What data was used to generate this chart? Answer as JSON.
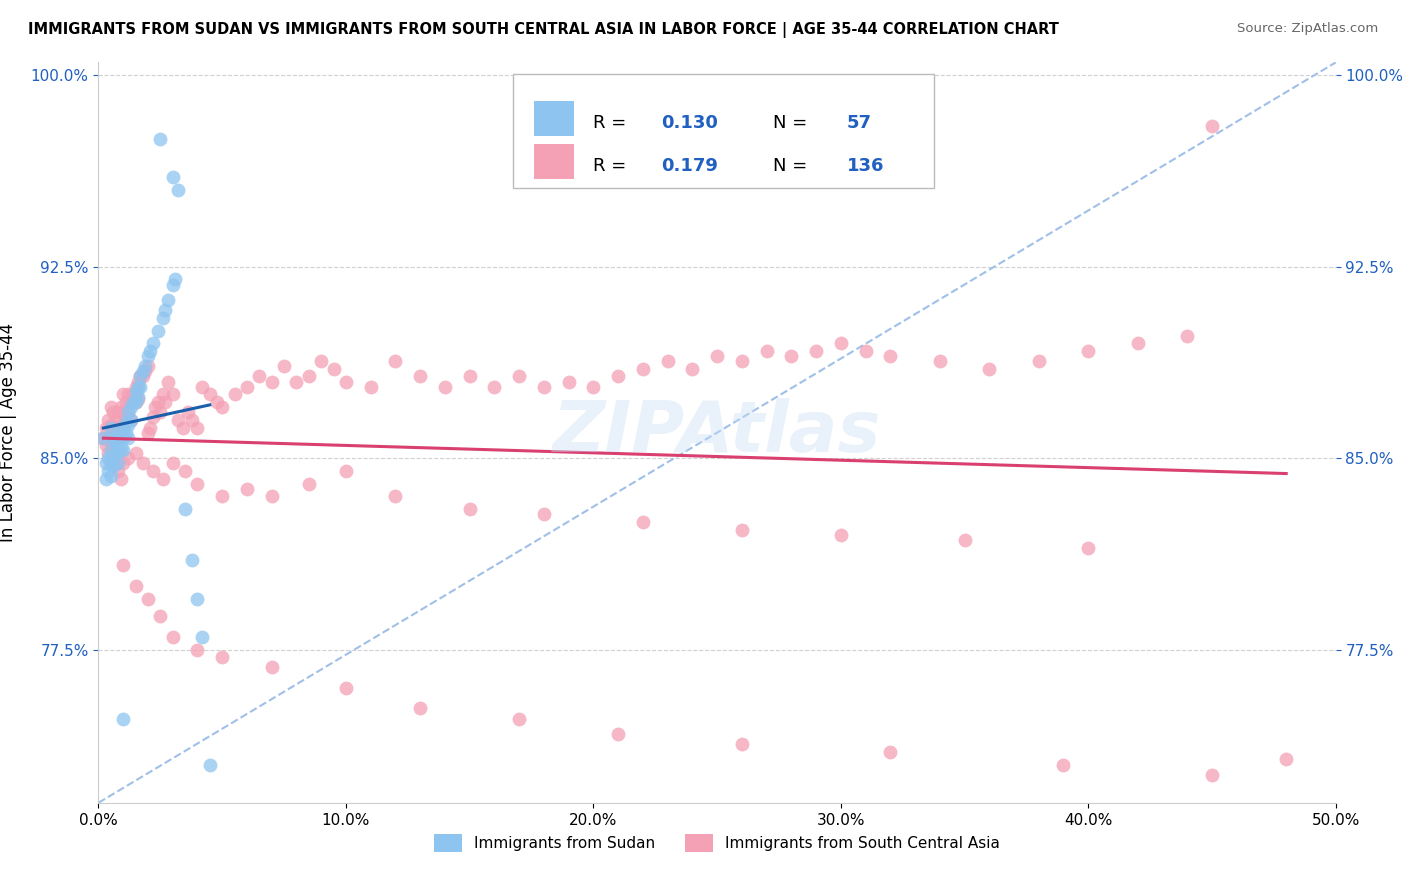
{
  "title": "IMMIGRANTS FROM SUDAN VS IMMIGRANTS FROM SOUTH CENTRAL ASIA IN LABOR FORCE | AGE 35-44 CORRELATION CHART",
  "source": "Source: ZipAtlas.com",
  "ylabel": "In Labor Force | Age 35-44",
  "watermark": "ZIPAtlas",
  "legend_R_blue": "0.130",
  "legend_N_blue": "57",
  "legend_R_pink": "0.179",
  "legend_N_pink": "136",
  "blue_color": "#8DC4F0",
  "pink_color": "#F4A0B5",
  "blue_line_color": "#1A5FAB",
  "pink_line_color": "#D94070",
  "dashed_line_color": "#A0C0E8",
  "xlim": [
    0.0,
    0.5
  ],
  "ylim": [
    0.715,
    1.005
  ],
  "y_tick_vals": [
    0.775,
    0.85,
    0.925,
    1.0
  ],
  "y_tick_labels": [
    "77.5%",
    "85.0%",
    "92.5%",
    "100.0%"
  ],
  "sudan_x": [
    0.002,
    0.003,
    0.003,
    0.004,
    0.004,
    0.005,
    0.005,
    0.005,
    0.005,
    0.005,
    0.006,
    0.006,
    0.007,
    0.007,
    0.008,
    0.008,
    0.008,
    0.008,
    0.009,
    0.009,
    0.01,
    0.01,
    0.01,
    0.011,
    0.011,
    0.012,
    0.012,
    0.012,
    0.013,
    0.013,
    0.014,
    0.015,
    0.015,
    0.016,
    0.016,
    0.017,
    0.017,
    0.018,
    0.019,
    0.02,
    0.021,
    0.022,
    0.024,
    0.025,
    0.026,
    0.027,
    0.028,
    0.03,
    0.03,
    0.031,
    0.032,
    0.035,
    0.038,
    0.04,
    0.042,
    0.045,
    0.01
  ],
  "sudan_y": [
    0.858,
    0.848,
    0.842,
    0.845,
    0.85,
    0.862,
    0.858,
    0.853,
    0.848,
    0.843,
    0.851,
    0.847,
    0.856,
    0.852,
    0.86,
    0.857,
    0.853,
    0.848,
    0.858,
    0.854,
    0.862,
    0.858,
    0.853,
    0.864,
    0.86,
    0.868,
    0.863,
    0.858,
    0.87,
    0.865,
    0.872,
    0.876,
    0.872,
    0.878,
    0.874,
    0.882,
    0.878,
    0.884,
    0.886,
    0.89,
    0.892,
    0.895,
    0.9,
    0.975,
    0.905,
    0.908,
    0.912,
    0.96,
    0.918,
    0.92,
    0.955,
    0.83,
    0.81,
    0.795,
    0.78,
    0.73,
    0.748
  ],
  "asia_x": [
    0.002,
    0.003,
    0.004,
    0.004,
    0.005,
    0.005,
    0.005,
    0.006,
    0.006,
    0.007,
    0.007,
    0.008,
    0.008,
    0.009,
    0.009,
    0.01,
    0.01,
    0.01,
    0.011,
    0.011,
    0.012,
    0.012,
    0.013,
    0.013,
    0.014,
    0.015,
    0.015,
    0.016,
    0.016,
    0.017,
    0.018,
    0.019,
    0.02,
    0.02,
    0.021,
    0.022,
    0.023,
    0.024,
    0.025,
    0.026,
    0.027,
    0.028,
    0.03,
    0.032,
    0.034,
    0.036,
    0.038,
    0.04,
    0.042,
    0.045,
    0.048,
    0.05,
    0.055,
    0.06,
    0.065,
    0.07,
    0.075,
    0.08,
    0.085,
    0.09,
    0.095,
    0.1,
    0.11,
    0.12,
    0.13,
    0.14,
    0.15,
    0.16,
    0.17,
    0.18,
    0.19,
    0.2,
    0.21,
    0.22,
    0.23,
    0.24,
    0.25,
    0.26,
    0.27,
    0.28,
    0.29,
    0.3,
    0.31,
    0.32,
    0.34,
    0.36,
    0.38,
    0.4,
    0.42,
    0.44,
    0.003,
    0.004,
    0.005,
    0.006,
    0.007,
    0.008,
    0.009,
    0.01,
    0.012,
    0.015,
    0.018,
    0.022,
    0.026,
    0.03,
    0.035,
    0.04,
    0.05,
    0.06,
    0.07,
    0.085,
    0.1,
    0.12,
    0.15,
    0.18,
    0.22,
    0.26,
    0.3,
    0.35,
    0.4,
    0.45,
    0.01,
    0.015,
    0.02,
    0.025,
    0.03,
    0.04,
    0.05,
    0.07,
    0.1,
    0.13,
    0.17,
    0.21,
    0.26,
    0.32,
    0.39,
    0.45,
    0.48
  ],
  "asia_y": [
    0.858,
    0.862,
    0.865,
    0.858,
    0.87,
    0.863,
    0.856,
    0.868,
    0.861,
    0.865,
    0.858,
    0.868,
    0.862,
    0.87,
    0.863,
    0.875,
    0.868,
    0.862,
    0.872,
    0.865,
    0.875,
    0.868,
    0.872,
    0.865,
    0.875,
    0.878,
    0.872,
    0.88,
    0.873,
    0.882,
    0.882,
    0.884,
    0.86,
    0.886,
    0.862,
    0.866,
    0.87,
    0.872,
    0.868,
    0.875,
    0.872,
    0.88,
    0.875,
    0.865,
    0.862,
    0.868,
    0.865,
    0.862,
    0.878,
    0.875,
    0.872,
    0.87,
    0.875,
    0.878,
    0.882,
    0.88,
    0.886,
    0.88,
    0.882,
    0.888,
    0.885,
    0.88,
    0.878,
    0.888,
    0.882,
    0.878,
    0.882,
    0.878,
    0.882,
    0.878,
    0.88,
    0.878,
    0.882,
    0.885,
    0.888,
    0.885,
    0.89,
    0.888,
    0.892,
    0.89,
    0.892,
    0.895,
    0.892,
    0.89,
    0.888,
    0.885,
    0.888,
    0.892,
    0.895,
    0.898,
    0.855,
    0.852,
    0.848,
    0.85,
    0.848,
    0.845,
    0.842,
    0.848,
    0.85,
    0.852,
    0.848,
    0.845,
    0.842,
    0.848,
    0.845,
    0.84,
    0.835,
    0.838,
    0.835,
    0.84,
    0.845,
    0.835,
    0.83,
    0.828,
    0.825,
    0.822,
    0.82,
    0.818,
    0.815,
    0.98,
    0.808,
    0.8,
    0.795,
    0.788,
    0.78,
    0.775,
    0.772,
    0.768,
    0.76,
    0.752,
    0.748,
    0.742,
    0.738,
    0.735,
    0.73,
    0.726,
    0.732
  ]
}
